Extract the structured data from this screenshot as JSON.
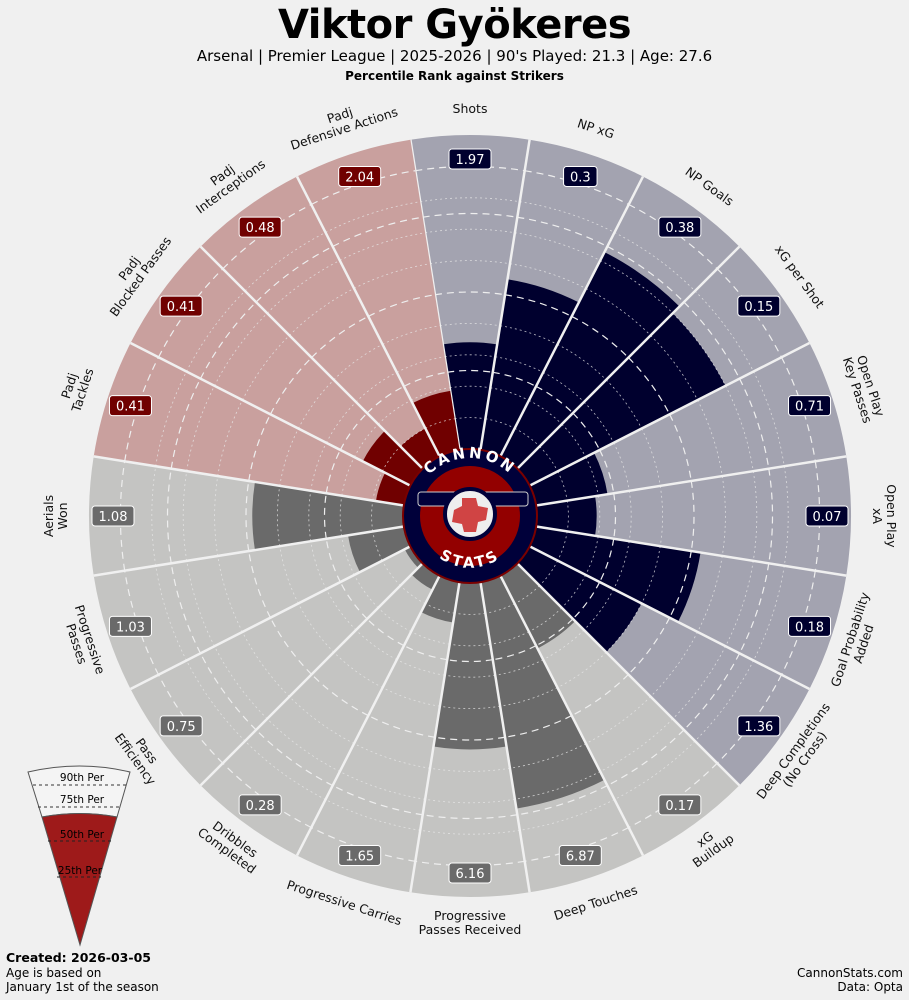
{
  "header": {
    "title": "Viktor Gyökeres",
    "subtitle": "Arsenal  | Premier League | 2025-2026 | 90's Played: 21.3 | Age: 27.6",
    "rank_line": "Percentile Rank against Strikers"
  },
  "logo": {
    "top": "CANNON",
    "bottom": "STATS"
  },
  "legend": {
    "labels": [
      "90th Per",
      "75th Per",
      "50th Per",
      "25th Per"
    ]
  },
  "footer": {
    "created": "Created: 2026-03-05",
    "age_note_1": "Age is based on",
    "age_note_2": "January 1st of the season",
    "credit_1": "CannonStats.com",
    "credit_2": "Data: Opta"
  },
  "colors": {
    "attacking": "#00002e",
    "attacking_bg": "#a3a3b0",
    "possession": "#6a6a6a",
    "possession_bg": "#c4c4c2",
    "defending": "#700000",
    "defending_bg": "#c9a09e",
    "background": "#f0f0f0"
  },
  "chart_data": {
    "type": "pizza",
    "title": "Viktor Gyökeres",
    "range": [
      0,
      100
    ],
    "gridlines": [
      25,
      50,
      75,
      90
    ],
    "categories": [
      {
        "label": [
          "Shots"
        ],
        "value": "1.97",
        "percentile": 34,
        "group": "attacking"
      },
      {
        "label": [
          "NP xG"
        ],
        "value": "0.3",
        "percentile": 55,
        "group": "attacking"
      },
      {
        "label": [
          "NP Goals"
        ],
        "value": "0.38",
        "percentile": 73,
        "group": "attacking"
      },
      {
        "label": [
          "xG per Shot"
        ],
        "value": "0.15",
        "percentile": 70,
        "group": "attacking"
      },
      {
        "label": [
          "Open Play",
          "Key Passes"
        ],
        "value": "0.71",
        "percentile": 23,
        "group": "attacking"
      },
      {
        "label": [
          "Open Play",
          "xA"
        ],
        "value": "0.07",
        "percentile": 19,
        "group": "attacking"
      },
      {
        "label": [
          "Goal Probability",
          "Added"
        ],
        "value": "0.18",
        "percentile": 53,
        "group": "attacking"
      },
      {
        "label": [
          "Deep Completions",
          "(No Cross)"
        ],
        "value": "1.36",
        "percentile": 40,
        "group": "attacking"
      },
      {
        "label": [
          "xG",
          "Buildup"
        ],
        "value": "0.17",
        "percentile": 26,
        "group": "possession"
      },
      {
        "label": [
          "Deep Touches"
        ],
        "value": "6.87",
        "percentile": 73,
        "group": "possession"
      },
      {
        "label": [
          "Progressive",
          "Passes Received"
        ],
        "value": "6.16",
        "percentile": 53,
        "group": "possession"
      },
      {
        "label": [
          "Progressive Carries"
        ],
        "value": "1.65",
        "percentile": 13,
        "group": "possession"
      },
      {
        "label": [
          "Dribbles",
          "Completed"
        ],
        "value": "0.28",
        "percentile": 5,
        "group": "possession"
      },
      {
        "label": [
          "Pass",
          "Efficiency"
        ],
        "value": "0.75",
        "percentile": 2,
        "group": "possession"
      },
      {
        "label": [
          "Progressive",
          "Passes"
        ],
        "value": "1.03",
        "percentile": 18,
        "group": "possession"
      },
      {
        "label": [
          "Aerials",
          "Won"
        ],
        "value": "1.08",
        "percentile": 48,
        "group": "possession"
      },
      {
        "label": [
          "Padj",
          "Tackles"
        ],
        "value": "0.41",
        "percentile": 9,
        "group": "defending"
      },
      {
        "label": [
          "Padj",
          "Blocked Passes"
        ],
        "value": "0.41",
        "percentile": 17,
        "group": "defending"
      },
      {
        "label": [
          "Padj",
          "Interceptions"
        ],
        "value": "0.48",
        "percentile": 10,
        "group": "defending"
      },
      {
        "label": [
          "Padj",
          "Defensive Actions"
        ],
        "value": "2.04",
        "percentile": 19,
        "group": "defending"
      }
    ]
  }
}
